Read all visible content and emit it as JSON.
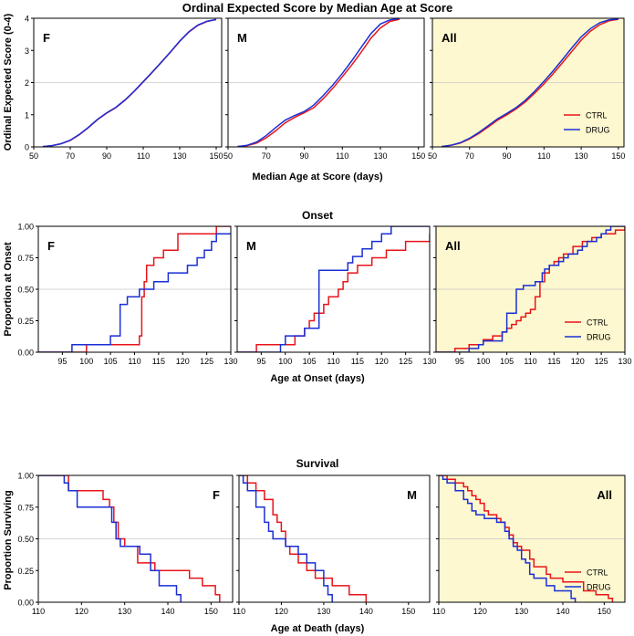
{
  "colors": {
    "ctrl": "#e8141b",
    "drug": "#1a2fd6",
    "all_panel_bg": "#fdf8cf",
    "grid": "#c8c8c8"
  },
  "chart_data": [
    {
      "id": "score",
      "type": "line",
      "title": "Ordinal Expected Score by Median Age at Score",
      "xlabel": "Median Age at Score (days)",
      "ylabel": "Ordinal Expected Score (0-4)",
      "xlim": [
        50,
        153
      ],
      "ylim": [
        0,
        4
      ],
      "xticks": [
        50,
        70,
        90,
        110,
        130,
        150
      ],
      "yticks": [
        0,
        1,
        2,
        3,
        4
      ],
      "gridlines_y": [
        2
      ],
      "panels": [
        {
          "label": "F",
          "legend": false,
          "series": [
            {
              "name": "CTRL",
              "x": [
                55,
                60,
                65,
                70,
                75,
                80,
                85,
                90,
                95,
                100,
                105,
                110,
                115,
                120,
                125,
                130,
                135,
                140,
                145,
                150
              ],
              "y": [
                0.01,
                0.04,
                0.1,
                0.2,
                0.38,
                0.6,
                0.85,
                1.05,
                1.22,
                1.45,
                1.72,
                2.02,
                2.32,
                2.63,
                2.95,
                3.28,
                3.57,
                3.78,
                3.9,
                3.96
              ]
            },
            {
              "name": "DRUG",
              "x": [
                55,
                60,
                65,
                70,
                75,
                80,
                85,
                90,
                95,
                100,
                105,
                110,
                115,
                120,
                125,
                130,
                135,
                140,
                145,
                150
              ],
              "y": [
                0.01,
                0.04,
                0.1,
                0.21,
                0.39,
                0.61,
                0.86,
                1.06,
                1.23,
                1.46,
                1.73,
                2.03,
                2.33,
                2.64,
                2.96,
                3.29,
                3.58,
                3.79,
                3.91,
                3.96
              ]
            }
          ]
        },
        {
          "label": "M",
          "legend": false,
          "series": [
            {
              "name": "CTRL",
              "x": [
                55,
                60,
                65,
                70,
                75,
                80,
                85,
                90,
                95,
                100,
                105,
                110,
                115,
                120,
                125,
                130,
                135,
                140
              ],
              "y": [
                0.01,
                0.04,
                0.12,
                0.28,
                0.5,
                0.75,
                0.92,
                1.06,
                1.22,
                1.5,
                1.82,
                2.18,
                2.55,
                2.95,
                3.38,
                3.7,
                3.9,
                3.97
              ]
            },
            {
              "name": "DRUG",
              "x": [
                55,
                60,
                65,
                70,
                75,
                80,
                85,
                90,
                95,
                100,
                105,
                110,
                115,
                120,
                125,
                130,
                135,
                140
              ],
              "y": [
                0.01,
                0.05,
                0.15,
                0.35,
                0.6,
                0.83,
                0.98,
                1.1,
                1.3,
                1.6,
                1.92,
                2.28,
                2.68,
                3.1,
                3.52,
                3.82,
                3.95,
                3.99
              ]
            }
          ]
        },
        {
          "label": "All",
          "legend": true,
          "shaded": true,
          "series": [
            {
              "name": "CTRL",
              "x": [
                55,
                60,
                65,
                70,
                75,
                80,
                85,
                90,
                95,
                100,
                105,
                110,
                115,
                120,
                125,
                130,
                135,
                140,
                145,
                150
              ],
              "y": [
                0.01,
                0.05,
                0.12,
                0.25,
                0.42,
                0.62,
                0.83,
                1.0,
                1.18,
                1.4,
                1.67,
                1.96,
                2.28,
                2.62,
                2.97,
                3.32,
                3.6,
                3.8,
                3.92,
                3.97
              ]
            },
            {
              "name": "DRUG",
              "x": [
                55,
                60,
                65,
                70,
                75,
                80,
                85,
                90,
                95,
                100,
                105,
                110,
                115,
                120,
                125,
                130,
                135,
                140,
                145,
                150
              ],
              "y": [
                0.01,
                0.05,
                0.13,
                0.27,
                0.45,
                0.66,
                0.87,
                1.04,
                1.22,
                1.45,
                1.73,
                2.04,
                2.37,
                2.72,
                3.08,
                3.42,
                3.68,
                3.86,
                3.95,
                3.98
              ]
            }
          ]
        }
      ]
    },
    {
      "id": "onset",
      "type": "line",
      "step": "post",
      "title": "Onset",
      "xlabel": "Age at Onset (days)",
      "ylabel": "Proportion at Onset",
      "xlim": [
        90,
        130
      ],
      "ylim": [
        0,
        1
      ],
      "xticks": [
        95,
        100,
        105,
        110,
        115,
        120,
        125,
        130
      ],
      "yticks": [
        0.0,
        0.25,
        0.5,
        0.75,
        1.0
      ],
      "ytick_labels": [
        "0.00",
        "0.25",
        "0.50",
        "0.75",
        "1.00"
      ],
      "gridlines_y": [
        0.5
      ],
      "panels": [
        {
          "label": "F",
          "legend": false,
          "series": [
            {
              "name": "CTRL",
              "x": [
                90,
                100,
                111,
                111.5,
                112,
                112.5,
                114,
                116,
                119,
                124,
                127,
                130
              ],
              "y": [
                0,
                0.06,
                0.13,
                0.44,
                0.56,
                0.69,
                0.75,
                0.81,
                0.94,
                0.94,
                1.0,
                1.0
              ]
            },
            {
              "name": "DRUG",
              "x": [
                90,
                97,
                105,
                107,
                108.5,
                111,
                112.5,
                114,
                117,
                119,
                121,
                123,
                124.5,
                126,
                127,
                130
              ],
              "y": [
                0,
                0.06,
                0.13,
                0.38,
                0.44,
                0.5,
                0.5,
                0.56,
                0.63,
                0.63,
                0.69,
                0.75,
                0.81,
                0.88,
                0.94,
                0.94
              ]
            }
          ]
        },
        {
          "label": "M",
          "legend": false,
          "series": [
            {
              "name": "CTRL",
              "x": [
                90,
                94,
                102,
                104,
                105,
                106,
                108,
                109,
                111,
                112,
                113,
                115,
                116,
                118,
                121,
                123,
                125,
                128,
                130
              ],
              "y": [
                0,
                0.06,
                0.13,
                0.19,
                0.25,
                0.31,
                0.38,
                0.44,
                0.5,
                0.56,
                0.63,
                0.69,
                0.69,
                0.75,
                0.81,
                0.81,
                0.88,
                0.88,
                0.94
              ]
            },
            {
              "name": "DRUG",
              "x": [
                90,
                99,
                100,
                104,
                107,
                112,
                113,
                114,
                116,
                118,
                120,
                122,
                124,
                130
              ],
              "y": [
                0,
                0.06,
                0.13,
                0.19,
                0.65,
                0.65,
                0.71,
                0.76,
                0.82,
                0.88,
                0.94,
                1.0,
                1.0,
                1.0
              ]
            }
          ]
        },
        {
          "label": "All",
          "legend": true,
          "shaded": true,
          "series": [
            {
              "name": "CTRL",
              "x": [
                90,
                94,
                97,
                100,
                102,
                104,
                105,
                106,
                107,
                108,
                109,
                110,
                111,
                112,
                113,
                114,
                115,
                116,
                117,
                119,
                121,
                123,
                124,
                125,
                127,
                128,
                130
              ],
              "y": [
                0,
                0.03,
                0.06,
                0.1,
                0.13,
                0.16,
                0.19,
                0.22,
                0.25,
                0.28,
                0.31,
                0.34,
                0.44,
                0.56,
                0.63,
                0.69,
                0.72,
                0.75,
                0.78,
                0.84,
                0.88,
                0.91,
                0.91,
                0.94,
                0.94,
                0.97,
                1.0
              ]
            },
            {
              "name": "DRUG",
              "x": [
                90,
                97,
                99,
                100,
                104,
                105,
                107,
                108.5,
                111,
                112.5,
                113,
                114,
                116,
                117,
                118,
                119,
                120,
                121,
                122,
                123,
                124,
                125,
                126,
                127,
                130
              ],
              "y": [
                0,
                0.03,
                0.06,
                0.09,
                0.16,
                0.31,
                0.5,
                0.53,
                0.56,
                0.63,
                0.66,
                0.69,
                0.72,
                0.75,
                0.78,
                0.78,
                0.81,
                0.84,
                0.88,
                0.88,
                0.91,
                0.94,
                0.97,
                1.0,
                1.0
              ]
            }
          ]
        }
      ]
    },
    {
      "id": "survival",
      "type": "line",
      "step": "post",
      "title": "Survival",
      "xlabel": "Age at Death (days)",
      "ylabel": "Proportion Surviving",
      "xlim": [
        110,
        155
      ],
      "ylim": [
        0,
        1
      ],
      "xticks": [
        110,
        120,
        130,
        140,
        150
      ],
      "yticks": [
        0.0,
        0.25,
        0.5,
        0.75,
        1.0
      ],
      "ytick_labels": [
        "0.00",
        "0.25",
        "0.50",
        "0.75",
        "1.00"
      ],
      "gridlines_y": [
        0.5
      ],
      "panels": [
        {
          "label": "F",
          "label_pos": "right",
          "legend": false,
          "series": [
            {
              "name": "CTRL",
              "x": [
                110,
                117,
                125,
                126.5,
                127.5,
                128.5,
                130,
                133,
                137,
                145,
                148,
                151,
                152
              ],
              "y": [
                1.0,
                0.88,
                0.81,
                0.75,
                0.63,
                0.5,
                0.44,
                0.31,
                0.25,
                0.19,
                0.13,
                0.06,
                0.0
              ]
            },
            {
              "name": "DRUG",
              "x": [
                110,
                116,
                117,
                119,
                126,
                127,
                128,
                129,
                132,
                133.5,
                136,
                138,
                142,
                143
              ],
              "y": [
                1.0,
                0.94,
                0.88,
                0.75,
                0.75,
                0.63,
                0.5,
                0.44,
                0.44,
                0.38,
                0.25,
                0.13,
                0.06,
                0.0
              ]
            }
          ]
        },
        {
          "label": "M",
          "label_pos": "right",
          "legend": false,
          "series": [
            {
              "name": "CTRL",
              "x": [
                110,
                112,
                114,
                116,
                118,
                119,
                120,
                121,
                122,
                124,
                126,
                128,
                132,
                136,
                140
              ],
              "y": [
                1.0,
                0.94,
                0.88,
                0.81,
                0.69,
                0.63,
                0.56,
                0.44,
                0.38,
                0.31,
                0.25,
                0.19,
                0.13,
                0.06,
                0.0
              ]
            },
            {
              "name": "DRUG",
              "x": [
                110,
                111,
                112,
                114,
                116,
                117,
                118,
                121,
                124,
                126,
                128,
                130,
                131,
                132
              ],
              "y": [
                1.0,
                0.94,
                0.88,
                0.75,
                0.63,
                0.56,
                0.5,
                0.44,
                0.38,
                0.31,
                0.25,
                0.13,
                0.06,
                0.0
              ]
            }
          ]
        },
        {
          "label": "All",
          "label_pos": "right",
          "legend": true,
          "shaded": true,
          "series": [
            {
              "name": "CTRL",
              "x": [
                110,
                112,
                114,
                116,
                117,
                118,
                119,
                120,
                121,
                122,
                124,
                125,
                126,
                127,
                128,
                129,
                130,
                132,
                133,
                136,
                137,
                140,
                145,
                148,
                151,
                152
              ],
              "y": [
                1.0,
                0.97,
                0.94,
                0.91,
                0.88,
                0.84,
                0.81,
                0.78,
                0.72,
                0.69,
                0.66,
                0.63,
                0.59,
                0.53,
                0.47,
                0.44,
                0.41,
                0.34,
                0.28,
                0.22,
                0.19,
                0.16,
                0.09,
                0.06,
                0.03,
                0.0
              ]
            },
            {
              "name": "DRUG",
              "x": [
                110,
                111,
                112,
                114,
                116,
                117,
                118,
                119,
                121,
                124,
                126,
                127,
                128,
                129,
                130,
                131,
                132,
                133,
                136,
                138,
                142,
                143
              ],
              "y": [
                1.0,
                0.97,
                0.94,
                0.88,
                0.81,
                0.78,
                0.72,
                0.69,
                0.66,
                0.63,
                0.56,
                0.5,
                0.44,
                0.41,
                0.34,
                0.31,
                0.22,
                0.19,
                0.13,
                0.09,
                0.03,
                0.0
              ]
            }
          ]
        }
      ]
    }
  ]
}
